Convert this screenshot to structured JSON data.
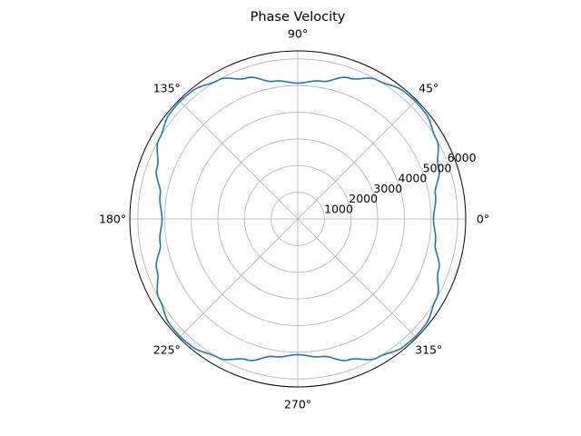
{
  "chart_data": {
    "type": "polar-line",
    "title": "Phase Velocity",
    "angle_unit": "degrees",
    "theta_ticks": [
      0,
      45,
      90,
      135,
      180,
      225,
      270,
      315
    ],
    "theta_tick_labels": [
      "0°",
      "45°",
      "90°",
      "135°",
      "180°",
      "225°",
      "270°",
      "315°"
    ],
    "r_ticks": [
      1000,
      2000,
      3000,
      4000,
      5000,
      6000
    ],
    "r_tick_labels": [
      "1000",
      "2000",
      "3000",
      "4000",
      "5000",
      "6000"
    ],
    "rlim": [
      0,
      6300
    ],
    "grid": true,
    "series": [
      {
        "color": "#1f77b4",
        "theta": [
          0,
          10,
          20,
          30,
          40,
          45,
          50,
          60,
          70,
          80,
          90,
          100,
          110,
          120,
          130,
          135,
          140,
          150,
          160,
          170,
          180,
          190,
          200,
          210,
          220,
          225,
          230,
          240,
          250,
          260,
          270,
          280,
          290,
          300,
          310,
          315,
          320,
          330,
          340,
          350,
          360
        ],
        "r": [
          5090,
          5240,
          5620,
          6000,
          6220,
          6240,
          6220,
          6000,
          5620,
          5240,
          5090,
          5240,
          5620,
          6000,
          6220,
          6240,
          6220,
          6000,
          5620,
          5240,
          5090,
          5240,
          5620,
          6000,
          6220,
          6240,
          6220,
          6000,
          5620,
          5240,
          5090,
          5240,
          5620,
          6000,
          6220,
          6240,
          6220,
          6000,
          5620,
          5240,
          5090
        ]
      }
    ]
  }
}
